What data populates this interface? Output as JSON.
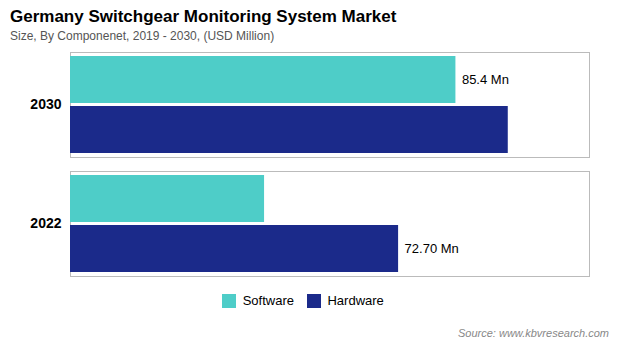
{
  "chart_data": {
    "type": "bar",
    "orientation": "horizontal",
    "title": "Germany Switchgear Monitoring System Market",
    "subtitle": "Size, By Componenet,  2019 - 2030, (USD Million)",
    "source": "Source: www.kbvresearch.com",
    "categories": [
      "2022",
      "2030"
    ],
    "series": [
      {
        "name": "Software",
        "color": "#4ECDC8",
        "values": [
          43.0,
          85.4
        ]
      },
      {
        "name": "Hardware",
        "color": "#1B2A8A",
        "values": [
          72.7,
          97.0
        ]
      }
    ],
    "annotations": [
      {
        "text": "85.4 Mn",
        "category": "2030",
        "series": "Software"
      },
      {
        "text": "72.70 Mn",
        "category": "2022",
        "series": "Hardware"
      }
    ],
    "xlim": [
      0,
      115
    ],
    "xticks": [],
    "tick_labels": "y",
    "grid": false,
    "legend": "bottom"
  }
}
